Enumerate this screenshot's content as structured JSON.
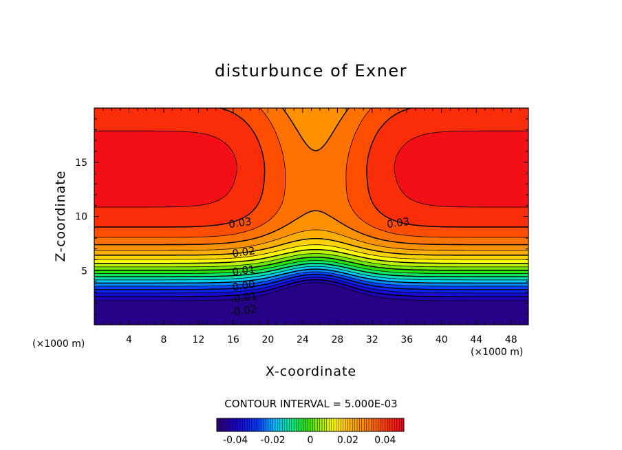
{
  "chart_data": {
    "type": "contour",
    "title": "disturbunce of Exner",
    "xlabel": "X-coordinate",
    "ylabel": "Z-coordinate",
    "x_unit": "(×1000 m)",
    "y_unit": "(×1000 m)",
    "xlim": [
      0,
      50
    ],
    "ylim": [
      0,
      20
    ],
    "xticks": [
      4,
      8,
      12,
      16,
      20,
      24,
      28,
      32,
      36,
      40,
      44,
      48
    ],
    "yticks": [
      5,
      10,
      15
    ],
    "contour_interval_text": "CONTOUR INTERVAL = 5.000E-03",
    "contour_interval": 0.005,
    "value_range": [
      -0.05,
      0.05
    ],
    "contour_labels": [
      {
        "text": "0.03",
        "x": 16.8,
        "z": 9.4
      },
      {
        "text": "0.03",
        "x": 35.0,
        "z": 9.4
      },
      {
        "text": "0.02",
        "x": 17.2,
        "z": 6.7
      },
      {
        "text": "0.01",
        "x": 17.2,
        "z": 5.0
      },
      {
        "text": "0.00",
        "x": 17.2,
        "z": 3.6
      },
      {
        "text": "-0.01",
        "x": 17.2,
        "z": 2.5
      },
      {
        "text": "-0.02",
        "x": 17.2,
        "z": 1.3
      }
    ],
    "colorbar": {
      "ticks": [
        -0.04,
        -0.02,
        0,
        0.02,
        0.04
      ],
      "tick_labels": [
        "-0.04",
        "-0.02",
        "0",
        "0.02",
        "0.04"
      ]
    }
  }
}
